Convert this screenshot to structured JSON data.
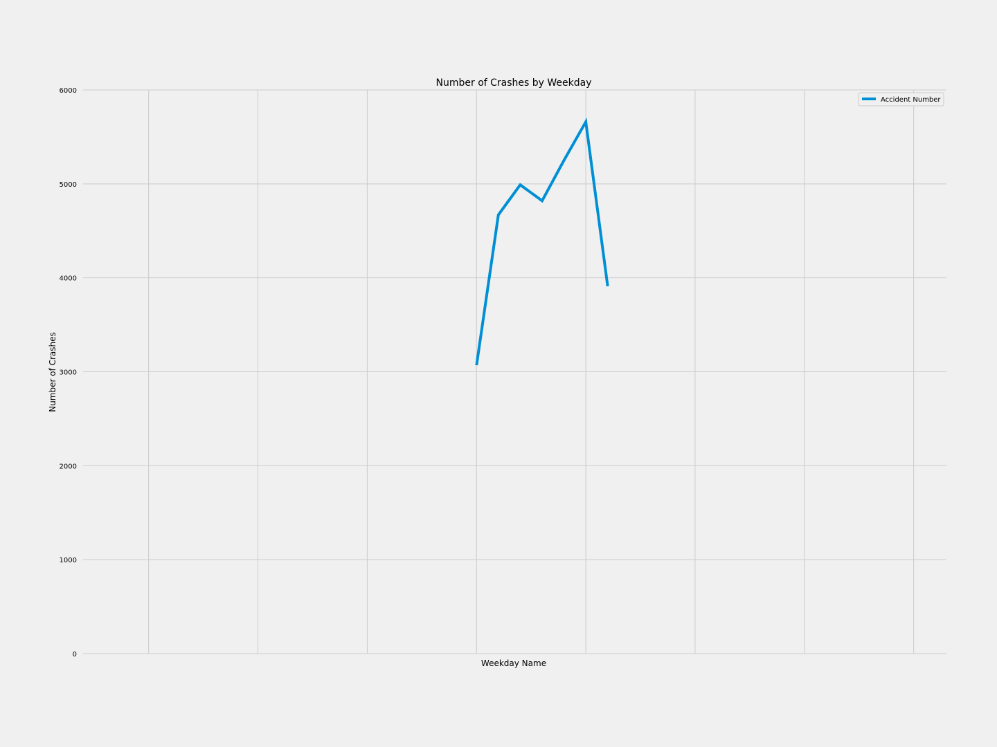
{
  "chart_data": {
    "type": "line",
    "title": "Number of Crashes by Weekday",
    "xlabel": "Weekday Name",
    "ylabel": "Number of Crashes",
    "ylim": [
      0,
      6000
    ],
    "yticks": [
      0,
      1000,
      2000,
      3000,
      4000,
      5000,
      6000
    ],
    "ytick_labels": [
      "0",
      "1000",
      "2000",
      "3000",
      "4000",
      "5000",
      "6000"
    ],
    "xlim": [
      -3.1,
      4.8
    ],
    "xgrid": [
      -2.5,
      -1.5,
      -0.5,
      0.5,
      1.5,
      2.5,
      3.5,
      4.5
    ],
    "grid": true,
    "legend_position": "top-right",
    "series": [
      {
        "name": "Accident Number",
        "color": "#008fd5",
        "x": [
          0.5,
          0.7,
          0.9,
          1.1,
          1.3,
          1.5,
          1.7
        ],
        "values": [
          3070,
          4670,
          4990,
          4820,
          5250,
          5660,
          3910
        ]
      }
    ]
  }
}
